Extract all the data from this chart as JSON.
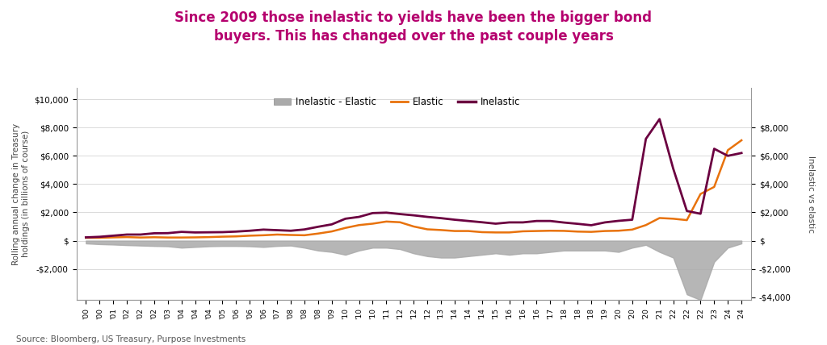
{
  "title": "Since 2009 those inelastic to yields have been the bigger bond\nbuyers. This has changed over the past couple years",
  "title_color": "#b5006e",
  "source": "Source: Bloomberg, US Treasury, Purpose Investments",
  "ylabel_left": "Rolling annual change in Treasury\nholdings (in billions of course)",
  "ylabel_right": "Inelastic vs elastic",
  "legend_labels": [
    "Inelastic - Elastic",
    "Elastic",
    "Inelastic"
  ],
  "elastic_color": "#e8720c",
  "inelastic_color": "#6b0040",
  "fill_color": "#aaaaaa",
  "background_color": "#ffffff",
  "yticks_left": [
    -2000,
    0,
    2000,
    4000,
    6000,
    8000,
    10000
  ],
  "ytick_labels_left": [
    "-$2,000",
    "$",
    "$2,000",
    "$4,000",
    "$6,000",
    "$8,000",
    "$10,000"
  ],
  "yticks_right": [
    -4000,
    -2000,
    0,
    2000,
    4000,
    6000,
    8000
  ],
  "ytick_labels_right": [
    "-$4,000",
    "-$2,000",
    "$",
    "$2,000",
    "$4,000",
    "$6,000",
    "$8,000"
  ],
  "ylim_left": [
    -4200,
    10800
  ],
  "ylim_right": [
    -4200,
    10800
  ],
  "x": [
    2000.0,
    2000.5,
    2001.0,
    2001.5,
    2002.0,
    2002.5,
    2003.0,
    2003.5,
    2004.0,
    2004.5,
    2005.0,
    2005.5,
    2006.0,
    2006.5,
    2007.0,
    2007.5,
    2008.0,
    2008.5,
    2009.0,
    2009.5,
    2010.0,
    2010.5,
    2011.0,
    2011.5,
    2012.0,
    2012.5,
    2013.0,
    2013.5,
    2014.0,
    2014.5,
    2015.0,
    2015.5,
    2016.0,
    2016.5,
    2017.0,
    2017.5,
    2018.0,
    2018.5,
    2019.0,
    2019.5,
    2020.0,
    2020.5,
    2021.0,
    2021.5,
    2022.0,
    2022.5,
    2023.0,
    2023.5,
    2024.0
  ],
  "elastic": [
    200,
    200,
    230,
    250,
    220,
    240,
    220,
    220,
    230,
    250,
    280,
    300,
    350,
    380,
    430,
    400,
    380,
    500,
    650,
    900,
    1100,
    1200,
    1350,
    1300,
    1000,
    800,
    750,
    680,
    680,
    600,
    580,
    580,
    660,
    680,
    700,
    690,
    640,
    620,
    680,
    700,
    780,
    1100,
    1600,
    1550,
    1450,
    3300,
    3800,
    6400,
    7100
  ],
  "inelastic": [
    230,
    270,
    350,
    430,
    430,
    520,
    530,
    620,
    580,
    590,
    600,
    640,
    700,
    780,
    740,
    700,
    790,
    980,
    1150,
    1550,
    1680,
    1950,
    1980,
    1880,
    1790,
    1680,
    1590,
    1480,
    1390,
    1300,
    1200,
    1290,
    1290,
    1390,
    1390,
    1280,
    1190,
    1090,
    1290,
    1400,
    1480,
    7200,
    8600,
    5100,
    2100,
    1900,
    6500,
    6000,
    6200
  ],
  "diff": [
    -200,
    -250,
    -280,
    -320,
    -350,
    -380,
    -400,
    -500,
    -450,
    -400,
    -380,
    -380,
    -400,
    -450,
    -380,
    -350,
    -500,
    -700,
    -800,
    -1000,
    -700,
    -500,
    -500,
    -600,
    -900,
    -1100,
    -1200,
    -1200,
    -1100,
    -1000,
    -900,
    -1000,
    -900,
    -900,
    -800,
    -700,
    -700,
    -700,
    -700,
    -800,
    -500,
    -300,
    -800,
    -1200,
    -3800,
    -4200,
    -1500,
    -500,
    -200
  ]
}
